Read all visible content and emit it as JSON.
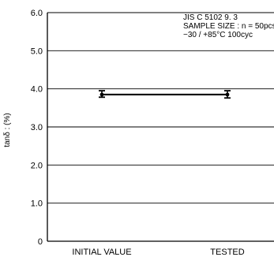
{
  "chart_data": {
    "type": "line",
    "title": "",
    "xlabel": "",
    "ylabel": "tanδ : (%)",
    "categories": [
      "INITIAL VALUE",
      "TESTED"
    ],
    "series": [
      {
        "values": [
          3.85,
          3.85
        ],
        "error_low": [
          3.78,
          3.76
        ],
        "error_high": [
          3.95,
          3.95
        ]
      }
    ],
    "ylim": [
      0,
      6.0
    ],
    "y_ticks": [
      0,
      1.0,
      2.0,
      3.0,
      4.0,
      5.0,
      6.0
    ],
    "y_tick_labels": [
      "0",
      "1.0",
      "2.0",
      "3.0",
      "4.0",
      "5.0",
      "6.0"
    ],
    "grid": true,
    "annotations": [
      "JIS C 5102 9. 3",
      "SAMPLE SIZE : n = 50pcs",
      "−30 / +85°C 100cyc"
    ]
  }
}
